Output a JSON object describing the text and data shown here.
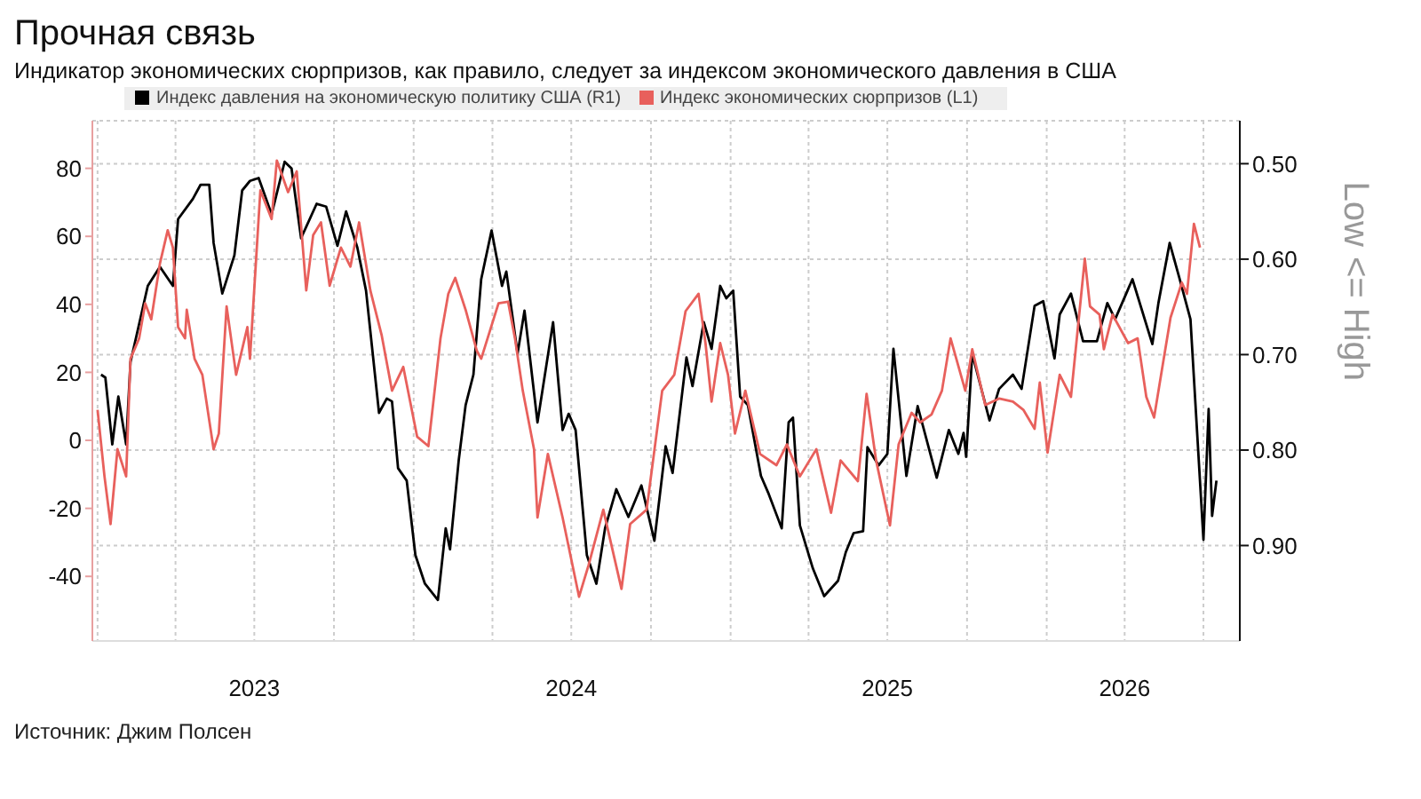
{
  "chart_data": {
    "type": "line",
    "title": "Прочная связь",
    "subtitle": "Индикатор экономических сюрпризов, как правило, следует за индексом экономического давления в США",
    "y2label": "Low <= High",
    "annotations": [
      "Источник: Джим Полсен"
    ],
    "legend": "top left",
    "grid": true,
    "marker": "none",
    "line_style": "solid",
    "xlim": [
      "2022-12-26",
      "2026-08-12"
    ],
    "xticks": [
      {
        "value": "2023-01-01",
        "label": null
      },
      {
        "value": "2023-04-01",
        "label": null
      },
      {
        "value": "2023-07-01",
        "label": "2023"
      },
      {
        "value": "2023-10-01",
        "label": null
      },
      {
        "value": "2024-01-01",
        "label": null
      },
      {
        "value": "2024-04-01",
        "label": null
      },
      {
        "value": "2024-07-01",
        "label": "2024"
      },
      {
        "value": "2024-10-01",
        "label": null
      },
      {
        "value": "2025-01-01",
        "label": null
      },
      {
        "value": "2025-04-01",
        "label": null
      },
      {
        "value": "2025-07-01",
        "label": "2025"
      },
      {
        "value": "2025-10-01",
        "label": null
      },
      {
        "value": "2026-01-01",
        "label": null
      },
      {
        "value": "2026-04-01",
        "label": "2026"
      },
      {
        "value": "2026-07-01",
        "label": null
      }
    ],
    "ylim": [
      -59,
      94
    ],
    "yticks": [
      -40,
      -20,
      0,
      20,
      40,
      60,
      80
    ],
    "y2lim": [
      1.0,
      0.455
    ],
    "y2ticks": [
      {
        "value": 0.5,
        "label": "0.50"
      },
      {
        "value": 0.6,
        "label": "0.60"
      },
      {
        "value": 0.7,
        "label": "0.70"
      },
      {
        "value": 0.8,
        "label": "0.80"
      },
      {
        "value": 0.9,
        "label": "0.90"
      }
    ],
    "series": [
      {
        "name": "Индекс давления на экономическую политику США (R1)",
        "color": "#000000",
        "axis": "y2",
        "x": [
          "2023-01-05",
          "2023-01-10",
          "2023-01-18",
          "2023-01-25",
          "2023-02-03",
          "2023-02-08",
          "2023-02-28",
          "2023-03-14",
          "2023-03-29",
          "2023-04-04",
          "2023-04-21",
          "2023-04-30",
          "2023-05-10",
          "2023-05-15",
          "2023-05-25",
          "2023-06-08",
          "2023-06-17",
          "2023-06-26",
          "2023-07-06",
          "2023-07-21",
          "2023-08-05",
          "2023-08-13",
          "2023-08-24",
          "2023-09-11",
          "2023-09-22",
          "2023-10-05",
          "2023-10-15",
          "2023-10-28",
          "2023-11-07",
          "2023-11-22",
          "2023-12-01",
          "2023-12-07",
          "2023-12-14",
          "2023-12-24",
          "2024-01-03",
          "2024-01-14",
          "2024-01-29",
          "2024-02-07",
          "2024-02-12",
          "2024-02-22",
          "2024-03-01",
          "2024-03-10",
          "2024-03-19",
          "2024-03-31",
          "2024-04-12",
          "2024-04-17",
          "2024-04-30",
          "2024-05-08",
          "2024-05-23",
          "2024-06-10",
          "2024-06-21",
          "2024-06-28",
          "2024-07-06",
          "2024-07-19",
          "2024-07-30",
          "2024-08-09",
          "2024-08-22",
          "2024-09-05",
          "2024-09-20",
          "2024-10-05",
          "2024-10-18",
          "2024-10-26",
          "2024-11-11",
          "2024-11-18",
          "2024-12-01",
          "2024-12-10",
          "2024-12-20",
          "2024-12-27",
          "2025-01-04",
          "2025-01-12",
          "2025-01-21",
          "2025-02-05",
          "2025-02-14",
          "2025-03-01",
          "2025-03-09",
          "2025-03-14",
          "2025-03-22",
          "2025-04-06",
          "2025-04-19",
          "2025-05-05",
          "2025-05-14",
          "2025-05-23",
          "2025-06-03",
          "2025-06-08",
          "2025-06-21",
          "2025-07-01",
          "2025-07-08",
          "2025-07-23",
          "2025-08-05",
          "2025-08-27",
          "2025-09-10",
          "2025-09-21",
          "2025-09-27",
          "2025-09-30",
          "2025-10-07",
          "2025-10-27",
          "2025-11-07",
          "2025-11-23",
          "2025-12-03",
          "2025-12-18",
          "2025-12-28",
          "2026-01-10",
          "2026-01-16",
          "2026-01-29",
          "2026-02-12",
          "2026-02-28",
          "2026-03-12",
          "2026-03-21",
          "2026-04-10",
          "2026-05-03",
          "2026-05-10",
          "2026-05-23",
          "2026-06-03",
          "2026-06-16",
          "2026-07-01",
          "2026-07-07",
          "2026-07-11",
          "2026-07-16"
        ],
        "values": [
          0.721,
          0.724,
          0.794,
          0.744,
          0.794,
          0.708,
          0.628,
          0.608,
          0.628,
          0.558,
          0.537,
          0.522,
          0.522,
          0.583,
          0.636,
          0.596,
          0.528,
          0.518,
          0.515,
          0.553,
          0.498,
          0.505,
          0.578,
          0.542,
          0.545,
          0.586,
          0.55,
          0.588,
          0.633,
          0.761,
          0.746,
          0.749,
          0.819,
          0.832,
          0.91,
          0.94,
          0.957,
          0.882,
          0.904,
          0.811,
          0.753,
          0.721,
          0.621,
          0.57,
          0.628,
          0.613,
          0.699,
          0.654,
          0.771,
          0.666,
          0.779,
          0.762,
          0.779,
          0.91,
          0.94,
          0.882,
          0.841,
          0.87,
          0.837,
          0.895,
          0.796,
          0.824,
          0.703,
          0.733,
          0.666,
          0.694,
          0.628,
          0.641,
          0.633,
          0.744,
          0.753,
          0.827,
          0.846,
          0.882,
          0.771,
          0.766,
          0.879,
          0.924,
          0.953,
          0.937,
          0.907,
          0.887,
          0.885,
          0.797,
          0.816,
          0.804,
          0.694,
          0.827,
          0.754,
          0.829,
          0.779,
          0.804,
          0.782,
          0.807,
          0.699,
          0.769,
          0.736,
          0.721,
          0.736,
          0.649,
          0.644,
          0.704,
          0.658,
          0.636,
          0.686,
          0.686,
          0.646,
          0.663,
          0.621,
          0.689,
          0.646,
          0.583,
          0.619,
          0.663,
          0.894,
          0.757,
          0.869,
          0.832
        ]
      },
      {
        "name": "Индекс экономических сюрпризов (L1)",
        "color": "#e8605c",
        "x": [
          "2023-01-01",
          "2023-01-09",
          "2023-01-16",
          "2023-01-24",
          "2023-02-03",
          "2023-02-08",
          "2023-02-18",
          "2023-02-25",
          "2023-03-04",
          "2023-03-14",
          "2023-03-23",
          "2023-03-29",
          "2023-04-04",
          "2023-04-12",
          "2023-04-14",
          "2023-04-23",
          "2023-05-02",
          "2023-05-15",
          "2023-05-21",
          "2023-05-30",
          "2023-06-10",
          "2023-06-23",
          "2023-06-26",
          "2023-07-04",
          "2023-07-08",
          "2023-07-21",
          "2023-07-27",
          "2023-08-09",
          "2023-08-19",
          "2023-08-30",
          "2023-09-07",
          "2023-09-16",
          "2023-09-26",
          "2023-10-09",
          "2023-10-20",
          "2023-10-30",
          "2023-11-12",
          "2023-11-25",
          "2023-12-07",
          "2023-12-20",
          "2024-01-05",
          "2024-01-18",
          "2024-02-01",
          "2024-02-10",
          "2024-02-18",
          "2024-03-01",
          "2024-03-14",
          "2024-03-19",
          "2024-04-08",
          "2024-04-19",
          "2024-04-27",
          "2024-05-06",
          "2024-05-19",
          "2024-05-23",
          "2024-06-04",
          "2024-06-21",
          "2024-07-10",
          "2024-07-21",
          "2024-08-07",
          "2024-08-28",
          "2024-09-07",
          "2024-09-26",
          "2024-10-14",
          "2024-10-28",
          "2024-11-10",
          "2024-11-25",
          "2024-12-03",
          "2024-12-10",
          "2024-12-20",
          "2024-12-29",
          "2025-01-06",
          "2025-01-18",
          "2025-02-04",
          "2025-02-23",
          "2025-03-07",
          "2025-03-22",
          "2025-04-10",
          "2025-04-27",
          "2025-05-08",
          "2025-05-28",
          "2025-06-07",
          "2025-06-18",
          "2025-07-04",
          "2025-07-14",
          "2025-07-29",
          "2025-08-08",
          "2025-08-21",
          "2025-09-02",
          "2025-09-12",
          "2025-09-29",
          "2025-10-07",
          "2025-10-22",
          "2025-11-07",
          "2025-11-23",
          "2025-12-05",
          "2025-12-18",
          "2025-12-24",
          "2026-01-02",
          "2026-01-16",
          "2026-01-29",
          "2026-02-14",
          "2026-02-20",
          "2026-03-03",
          "2026-03-08",
          "2026-03-18",
          "2026-04-05",
          "2026-04-16",
          "2026-04-26",
          "2026-05-05",
          "2026-05-14",
          "2026-05-24",
          "2026-06-06",
          "2026-06-12",
          "2026-06-20",
          "2026-06-27"
        ],
        "values": [
          9,
          -10.6,
          -24.6,
          -2.6,
          -10.6,
          24,
          30,
          40.3,
          35.6,
          52,
          61.8,
          56.7,
          33.3,
          30,
          38.4,
          24,
          19.3,
          -2.6,
          2,
          39.4,
          19.3,
          33.3,
          24,
          57.1,
          73.5,
          65.1,
          82.3,
          73,
          79.1,
          44.1,
          60.4,
          64.1,
          45.5,
          56.7,
          51.1,
          64.1,
          44.1,
          31,
          14.6,
          21.6,
          1.1,
          -1.7,
          30,
          43.1,
          47.8,
          38.4,
          26.3,
          24,
          40.3,
          40.8,
          30,
          14.6,
          -2.6,
          -22.7,
          -4,
          -22.7,
          -46,
          -36.7,
          -20.4,
          -43.7,
          -24.6,
          -20.4,
          14.6,
          19.3,
          38,
          43.1,
          28.6,
          11.4,
          28.6,
          19.3,
          2,
          14.6,
          -4,
          -7.3,
          -1.2,
          -10.6,
          -2.6,
          -21.3,
          -5.9,
          -12,
          13.7,
          -5.9,
          -25,
          -1.2,
          8.1,
          5.3,
          7.6,
          14.6,
          30,
          14.6,
          26.8,
          10.4,
          12.3,
          11.4,
          9,
          3.4,
          17,
          -3.6,
          19.3,
          12.8,
          53.4,
          39.4,
          37,
          26.8,
          37,
          28.6,
          30,
          12.8,
          6.7,
          20.7,
          36.1,
          46.4,
          43.1,
          63.7,
          56.7
        ]
      }
    ]
  }
}
